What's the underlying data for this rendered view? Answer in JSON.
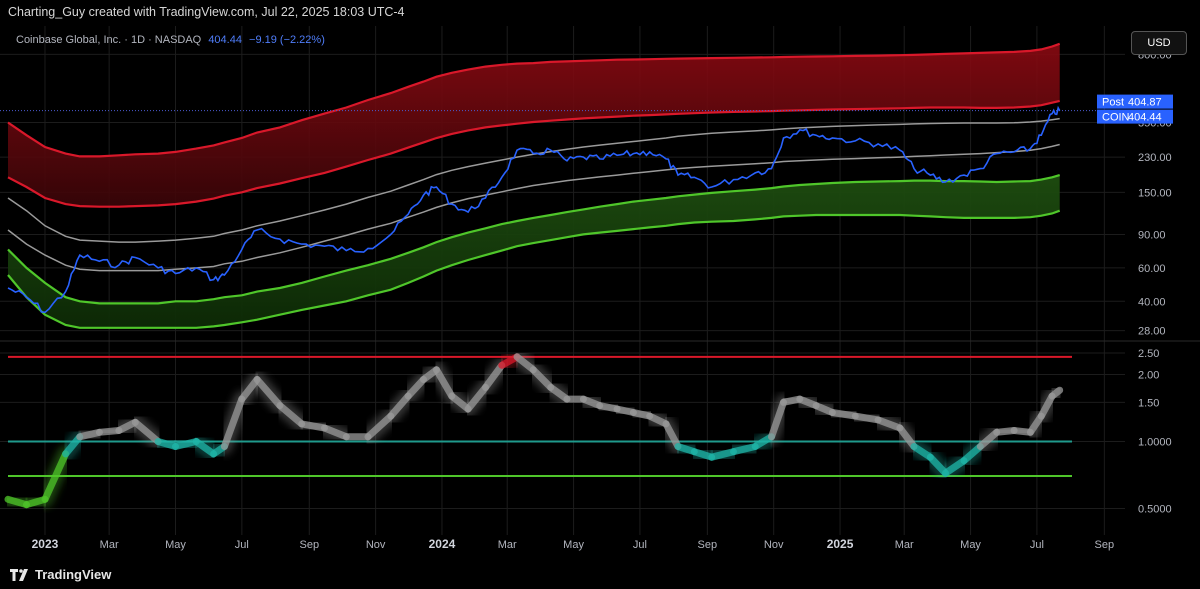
{
  "header": {
    "attribution": "Charting_Guy created with TradingView.com, Jul 22, 2025 18:03 UTC-4"
  },
  "legend": {
    "symbol_text": "Coinbase Global, Inc. · 1D · NASDAQ",
    "price": "404.44",
    "change": "−9.19 (−2.22%)"
  },
  "currency_button": "USD",
  "price_tags": [
    {
      "label": "Post",
      "value": "404.87",
      "color": "#2962ff"
    },
    {
      "label": "COIN",
      "value": "404.44",
      "color": "#2962ff"
    }
  ],
  "footer": {
    "brand": "TradingView"
  },
  "colors": {
    "price_line": "#2962ff",
    "red_band": "#8b0a12",
    "red_line": "#d9182a",
    "green_band": "#1e4d10",
    "green_line": "#4fc62a",
    "median_line": "#9a9a9a",
    "teal_line": "#1f9a8c",
    "grid": "#1c1c1c"
  },
  "chart_data": [
    {
      "type": "line",
      "title": "COIN price with logarithmic regression bands",
      "y_scale": "log",
      "ylim": [
        25,
        1000
      ],
      "y_ticks": [
        "800.00",
        "350.00",
        "230.00",
        "150.00",
        "90.00",
        "60.00",
        "40.00",
        "28.00"
      ],
      "y_tick_values": [
        800,
        350,
        230,
        150,
        90,
        60,
        40,
        28
      ],
      "x_labels": [
        "2023",
        "Mar",
        "May",
        "Jul",
        "Sep",
        "Nov",
        "2024",
        "Mar",
        "May",
        "Jul",
        "Sep",
        "Nov",
        "2025",
        "Mar",
        "May",
        "Jul",
        "Sep"
      ],
      "x_label_dates": [
        "2023-01-01",
        "2023-03-01",
        "2023-05-01",
        "2023-07-01",
        "2023-09-01",
        "2023-11-01",
        "2024-01-01",
        "2024-03-01",
        "2024-05-01",
        "2024-07-01",
        "2024-09-01",
        "2024-11-01",
        "2025-01-01",
        "2025-03-01",
        "2025-05-01",
        "2025-07-01",
        "2025-09-01"
      ],
      "xlim": [
        "2022-11-28",
        "2025-09-20"
      ],
      "x": [
        "2022-11-28",
        "2022-12-15",
        "2023-01-01",
        "2023-01-20",
        "2023-02-02",
        "2023-02-20",
        "2023-03-10",
        "2023-03-25",
        "2023-04-15",
        "2023-05-01",
        "2023-05-20",
        "2023-06-05",
        "2023-06-15",
        "2023-07-01",
        "2023-07-15",
        "2023-08-05",
        "2023-08-25",
        "2023-09-15",
        "2023-10-05",
        "2023-10-25",
        "2023-11-15",
        "2023-12-01",
        "2023-12-15",
        "2023-12-27",
        "2024-01-10",
        "2024-01-25",
        "2024-02-10",
        "2024-02-25",
        "2024-03-10",
        "2024-03-25",
        "2024-04-10",
        "2024-04-25",
        "2024-05-10",
        "2024-05-25",
        "2024-06-10",
        "2024-06-25",
        "2024-07-10",
        "2024-07-25",
        "2024-08-05",
        "2024-08-20",
        "2024-09-05",
        "2024-09-25",
        "2024-10-15",
        "2024-10-30",
        "2024-11-10",
        "2024-11-25",
        "2024-12-10",
        "2024-12-25",
        "2025-01-15",
        "2025-02-05",
        "2025-02-25",
        "2025-03-10",
        "2025-03-25",
        "2025-04-08",
        "2025-04-25",
        "2025-05-10",
        "2025-05-25",
        "2025-06-10",
        "2025-06-25",
        "2025-07-05",
        "2025-07-15",
        "2025-07-22"
      ],
      "series": [
        {
          "name": "COIN",
          "color": "#2962ff",
          "values": [
            47,
            42,
            35,
            45,
            70,
            65,
            62,
            68,
            60,
            56,
            60,
            52,
            55,
            75,
            95,
            85,
            80,
            78,
            74,
            76,
            90,
            115,
            145,
            160,
            130,
            118,
            140,
            180,
            250,
            240,
            250,
            220,
            230,
            225,
            235,
            240,
            245,
            225,
            185,
            180,
            160,
            175,
            190,
            200,
            290,
            320,
            300,
            290,
            280,
            270,
            250,
            200,
            185,
            170,
            185,
            200,
            240,
            245,
            255,
            300,
            390,
            404.44
          ]
        },
        {
          "name": "Upper band",
          "color": "#d9182a",
          "values": [
            350,
            300,
            260,
            240,
            232,
            232,
            235,
            238,
            240,
            245,
            255,
            265,
            275,
            290,
            310,
            330,
            360,
            390,
            420,
            460,
            500,
            540,
            575,
            610,
            640,
            665,
            690,
            705,
            715,
            720,
            730,
            735,
            740,
            745,
            750,
            752,
            755,
            758,
            760,
            762,
            765,
            768,
            770,
            772,
            775,
            778,
            780,
            782,
            785,
            788,
            792,
            795,
            800,
            805,
            810,
            815,
            820,
            825,
            835,
            850,
            880,
            910
          ]
        },
        {
          "name": "Upper inner",
          "color": "#d9182a",
          "values": [
            180,
            160,
            140,
            130,
            127,
            126,
            126,
            127,
            128,
            130,
            134,
            139,
            144,
            150,
            158,
            167,
            178,
            190,
            205,
            222,
            240,
            258,
            275,
            290,
            305,
            318,
            330,
            338,
            345,
            352,
            358,
            363,
            368,
            372,
            376,
            380,
            383,
            386,
            389,
            392,
            395,
            398,
            400,
            402,
            404,
            406,
            408,
            410,
            412,
            414,
            416,
            418,
            420,
            420,
            420,
            418,
            418,
            420,
            425,
            432,
            445,
            455
          ]
        },
        {
          "name": "Mid upper",
          "color": "#9a9a9a",
          "values": [
            140,
            120,
            100,
            88,
            84,
            83,
            82,
            82,
            83,
            84,
            86,
            88,
            91,
            95,
            100,
            106,
            113,
            121,
            130,
            141,
            152,
            164,
            175,
            186,
            196,
            205,
            214,
            222,
            230,
            238,
            246,
            253,
            260,
            266,
            272,
            278,
            284,
            290,
            296,
            302,
            307,
            312,
            316,
            320,
            324,
            328,
            331,
            334,
            337,
            340,
            342,
            344,
            346,
            347,
            348,
            348,
            348,
            349,
            352,
            356,
            362,
            367
          ]
        },
        {
          "name": "Mid lower",
          "color": "#9a9a9a",
          "values": [
            95,
            80,
            70,
            62,
            59,
            58,
            58,
            58,
            58,
            59,
            60,
            61,
            63,
            65,
            68,
            72,
            77,
            83,
            89,
            96,
            103,
            111,
            118,
            125,
            132,
            139,
            145,
            151,
            157,
            163,
            168,
            173,
            177,
            181,
            185,
            189,
            193,
            197,
            200,
            203,
            206,
            209,
            212,
            215,
            218,
            220,
            222,
            224,
            226,
            228,
            230,
            232,
            234,
            236,
            238,
            240,
            243,
            246,
            250,
            255,
            262,
            268
          ]
        },
        {
          "name": "Lower inner",
          "color": "#4fc62a",
          "values": [
            75,
            60,
            50,
            42,
            40,
            39,
            39,
            39,
            39,
            40,
            40,
            41,
            42,
            43,
            45,
            47,
            50,
            54,
            58,
            62,
            67,
            72,
            77,
            82,
            87,
            92,
            97,
            102,
            106,
            110,
            114,
            118,
            122,
            126,
            130,
            134,
            137,
            140,
            143,
            146,
            149,
            152,
            155,
            158,
            161,
            164,
            166,
            168,
            170,
            171,
            172,
            173,
            173,
            172,
            172,
            171,
            170,
            171,
            172,
            175,
            180,
            185
          ]
        },
        {
          "name": "Lower band",
          "color": "#4fc62a",
          "values": [
            55,
            42,
            34,
            30,
            29,
            29,
            29,
            29,
            29,
            29,
            29,
            29.5,
            30,
            31,
            32,
            34,
            36,
            38,
            40,
            43,
            46,
            50,
            54,
            58,
            62,
            66,
            70,
            74,
            78,
            81,
            84,
            87,
            90,
            92,
            94,
            96,
            98,
            100,
            102,
            104,
            105,
            106,
            108,
            110,
            112,
            113,
            114,
            114,
            114,
            114,
            114,
            113,
            112,
            111,
            110,
            110,
            110,
            110,
            111,
            113,
            116,
            120
          ]
        }
      ],
      "horizontal_line": {
        "value": 404.44,
        "color": "#4b5bd1"
      }
    },
    {
      "type": "line",
      "title": "Oscillator (log-scaled)",
      "y_scale": "log",
      "ylim": [
        0.38,
        2.8
      ],
      "y_ticks": [
        "2.50",
        "2.00",
        "1.50",
        "1.0000",
        "0.5000"
      ],
      "y_tick_values": [
        2.5,
        2.0,
        1.5,
        1.0,
        0.5
      ],
      "x": [
        "2022-11-28",
        "2022-12-15",
        "2023-01-01",
        "2023-01-20",
        "2023-02-02",
        "2023-02-20",
        "2023-03-10",
        "2023-03-25",
        "2023-04-15",
        "2023-05-01",
        "2023-05-20",
        "2023-06-05",
        "2023-06-15",
        "2023-07-01",
        "2023-07-15",
        "2023-08-05",
        "2023-08-25",
        "2023-09-15",
        "2023-10-05",
        "2023-10-25",
        "2023-11-15",
        "2023-12-01",
        "2023-12-15",
        "2023-12-27",
        "2024-01-10",
        "2024-01-25",
        "2024-02-10",
        "2024-02-25",
        "2024-03-10",
        "2024-03-25",
        "2024-04-10",
        "2024-04-25",
        "2024-05-10",
        "2024-05-25",
        "2024-06-10",
        "2024-06-25",
        "2024-07-10",
        "2024-07-25",
        "2024-08-05",
        "2024-08-20",
        "2024-09-05",
        "2024-09-25",
        "2024-10-15",
        "2024-10-30",
        "2024-11-10",
        "2024-11-25",
        "2024-12-10",
        "2024-12-25",
        "2025-01-15",
        "2025-02-05",
        "2025-02-25",
        "2025-03-10",
        "2025-03-25",
        "2025-04-08",
        "2025-04-25",
        "2025-05-10",
        "2025-05-25",
        "2025-06-10",
        "2025-06-25",
        "2025-07-05",
        "2025-07-15",
        "2025-07-22"
      ],
      "series": [
        {
          "name": "Oscillator",
          "values": [
            0.55,
            0.52,
            0.55,
            0.88,
            1.05,
            1.1,
            1.12,
            1.22,
            1.0,
            0.95,
            1.0,
            0.88,
            0.95,
            1.55,
            1.9,
            1.45,
            1.2,
            1.15,
            1.05,
            1.05,
            1.3,
            1.6,
            1.9,
            2.1,
            1.6,
            1.4,
            1.75,
            2.2,
            2.4,
            2.1,
            1.75,
            1.55,
            1.55,
            1.45,
            1.4,
            1.35,
            1.3,
            1.2,
            0.95,
            0.9,
            0.85,
            0.9,
            0.95,
            1.05,
            1.5,
            1.55,
            1.45,
            1.35,
            1.3,
            1.25,
            1.15,
            0.95,
            0.85,
            0.72,
            0.82,
            0.95,
            1.1,
            1.12,
            1.1,
            1.3,
            1.6,
            1.7
          ]
        }
      ],
      "horizontal_lines": [
        {
          "value": 2.4,
          "color": "#d9182a"
        },
        {
          "value": 1.0,
          "color": "#1f9a8c"
        },
        {
          "value": 0.7,
          "color": "#4fc62a"
        }
      ]
    }
  ]
}
